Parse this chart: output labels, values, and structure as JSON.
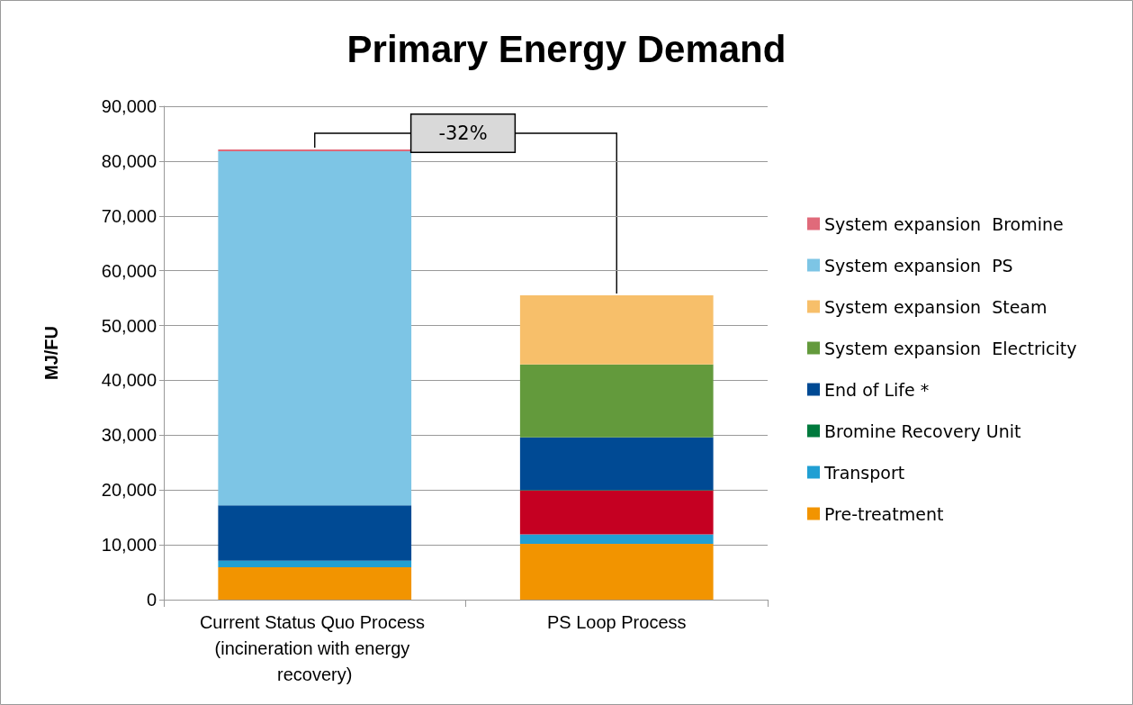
{
  "chart_data": {
    "type": "bar",
    "stacked": true,
    "title": "Primary Energy Demand",
    "ylabel": "MJ/FU",
    "categories": [
      "Current Status Quo Process (incineration with energy recovery)",
      "PS Loop Process"
    ],
    "series": [
      {
        "name": "Pre-treatment",
        "color": "#f29400",
        "values": [
          5900,
          10200
        ]
      },
      {
        "name": "Transport",
        "color": "#219fd3",
        "values": [
          1200,
          1700
        ]
      },
      {
        "color": "#c50022",
        "values": [
          null,
          8000
        ]
      },
      {
        "name": "Bromine Recovery Unit",
        "color": "#007a3d",
        "values": [
          null,
          100
        ]
      },
      {
        "name": "End of Life *",
        "color": "#004a94",
        "values": [
          10100,
          9600
        ]
      },
      {
        "name": "System expansion  Electricity",
        "color": "#639a3c",
        "values": [
          null,
          13300
        ]
      },
      {
        "name": "System expansion  Steam",
        "color": "#f7bf6a",
        "values": [
          null,
          12600
        ]
      },
      {
        "name": "System expansion  PS",
        "color": "#7dc5e5",
        "values": [
          64600,
          null
        ]
      },
      {
        "name": "System expansion  Bromine",
        "color": "#e06a7a",
        "values": [
          300,
          null
        ]
      }
    ],
    "ylim": [
      0,
      90000
    ],
    "yticks": [
      0,
      {
        "value": 10000,
        "label": "10,000"
      },
      {
        "value": 20000,
        "label": "20,000"
      },
      {
        "value": 30000,
        "label": "30,000"
      },
      {
        "value": 40000,
        "label": "40,000"
      },
      {
        "value": 50000,
        "label": "50,000"
      },
      {
        "value": 60000,
        "label": "60,000"
      },
      {
        "value": 70000,
        "label": "70,000"
      },
      {
        "value": 80000,
        "label": "80,000"
      },
      {
        "value": 90000,
        "label": "90,000"
      }
    ],
    "grid": "y",
    "legend": "right",
    "annotations": [
      "-32%"
    ]
  }
}
